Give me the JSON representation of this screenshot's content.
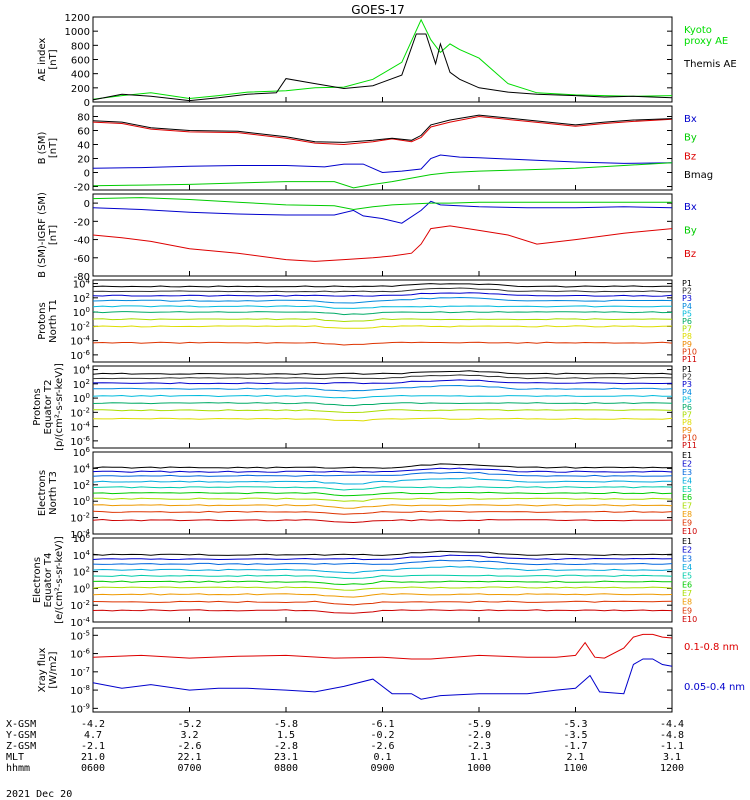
{
  "chart_data": {
    "type": "line",
    "title": "GOES-17",
    "date_label": "2021 Dec 20",
    "x_ticks": [
      "0600",
      "0700",
      "0800",
      "0900",
      "1000",
      "1100",
      "1200"
    ],
    "x_range_hours": [
      6,
      12
    ],
    "ephemeris": {
      "row_labels": [
        "X-GSM",
        "Y-GSM",
        "Z-GSM",
        "MLT",
        "hhmm"
      ],
      "rows": [
        [
          "-4.2",
          "-5.2",
          "-5.8",
          "-6.1",
          "-5.9",
          "-5.3",
          "-4.4"
        ],
        [
          "4.7",
          "3.2",
          "1.5",
          "-0.2",
          "-2.0",
          "-3.5",
          "-4.8"
        ],
        [
          "-2.1",
          "-2.6",
          "-2.8",
          "-2.6",
          "-2.3",
          "-1.7",
          "-1.1"
        ],
        [
          "21.0",
          "22.1",
          "23.1",
          "0.1",
          "1.1",
          "2.1",
          "3.1"
        ],
        [
          "0600",
          "0700",
          "0800",
          "0900",
          "1000",
          "1100",
          "1200"
        ]
      ]
    },
    "panels": [
      {
        "id": "ae",
        "ylabel": [
          "AE index",
          "[nT]"
        ],
        "scale": "linear",
        "ylim": [
          0,
          1200
        ],
        "yticks": [
          "0",
          "200",
          "400",
          "600",
          "800",
          "1000",
          "1200"
        ],
        "legend_style": "stacked",
        "series": [
          {
            "name": "Kyoto proxy AE",
            "label_lines": [
              "Kyoto",
              "proxy AE"
            ],
            "color": "#00dd00",
            "x": [
              6.0,
              6.3,
              6.6,
              7.0,
              7.3,
              7.6,
              8.0,
              8.3,
              8.6,
              8.9,
              9.2,
              9.4,
              9.5,
              9.6,
              9.7,
              9.8,
              10.0,
              10.3,
              10.6,
              11.0,
              11.3,
              11.6,
              12.0
            ],
            "y": [
              40,
              90,
              130,
              50,
              90,
              140,
              160,
              200,
              210,
              320,
              560,
              1160,
              880,
              700,
              820,
              740,
              620,
              260,
              130,
              100,
              90,
              80,
              90
            ]
          },
          {
            "name": "Themis AE",
            "label_lines": [
              "Themis AE"
            ],
            "color": "#000000",
            "x": [
              6.0,
              6.3,
              6.6,
              7.0,
              7.3,
              7.6,
              7.9,
              8.0,
              8.3,
              8.6,
              8.9,
              9.2,
              9.35,
              9.45,
              9.55,
              9.6,
              9.7,
              9.8,
              10.0,
              10.3,
              10.6,
              11.0,
              11.3,
              11.6,
              12.0
            ],
            "y": [
              30,
              110,
              80,
              20,
              60,
              110,
              130,
              330,
              260,
              190,
              230,
              380,
              960,
              960,
              540,
              820,
              420,
              320,
              200,
              140,
              110,
              90,
              70,
              80,
              60
            ]
          }
        ]
      },
      {
        "id": "bsm",
        "ylabel": [
          "B (SM)",
          "[nT]"
        ],
        "scale": "linear",
        "ylim": [
          -25,
          95
        ],
        "tick_values": [
          -20,
          0,
          20,
          40,
          60,
          80
        ],
        "yticks": [
          "-20",
          "0",
          "20",
          "40",
          "60",
          "80"
        ],
        "legend_style": "stacked",
        "series": [
          {
            "name": "Bx",
            "color": "#0000cc",
            "x": [
              6.0,
              6.5,
              7.0,
              7.5,
              8.0,
              8.4,
              8.6,
              8.8,
              9.0,
              9.2,
              9.4,
              9.5,
              9.6,
              9.8,
              10.0,
              10.5,
              11.0,
              11.5,
              12.0
            ],
            "y": [
              6,
              7,
              9,
              10,
              10,
              8,
              12,
              12,
              0,
              2,
              5,
              20,
              25,
              22,
              21,
              18,
              15,
              13,
              14
            ]
          },
          {
            "name": "By",
            "color": "#00cc00",
            "x": [
              6.0,
              6.5,
              7.0,
              7.5,
              8.0,
              8.5,
              8.7,
              8.9,
              9.1,
              9.3,
              9.5,
              9.7,
              10.0,
              10.5,
              11.0,
              11.5,
              12.0
            ],
            "y": [
              -19,
              -18,
              -17,
              -15,
              -13,
              -13,
              -22,
              -17,
              -13,
              -8,
              -3,
              0,
              2,
              4,
              6,
              10,
              14
            ]
          },
          {
            "name": "Bz",
            "color": "#dd0000",
            "x": [
              6.0,
              6.3,
              6.6,
              7.0,
              7.5,
              8.0,
              8.3,
              8.6,
              8.9,
              9.1,
              9.3,
              9.4,
              9.5,
              9.7,
              10.0,
              10.5,
              11.0,
              11.3,
              11.6,
              12.0
            ],
            "y": [
              72,
              70,
              62,
              58,
              57,
              49,
              42,
              40,
              44,
              48,
              44,
              50,
              65,
              72,
              80,
              73,
              66,
              70,
              73,
              76
            ]
          },
          {
            "name": "Bmag",
            "color": "#000000",
            "x": [
              6.0,
              6.3,
              6.6,
              7.0,
              7.5,
              8.0,
              8.3,
              8.6,
              8.9,
              9.1,
              9.3,
              9.4,
              9.5,
              9.7,
              10.0,
              10.5,
              11.0,
              11.3,
              11.6,
              12.0
            ],
            "y": [
              74,
              72,
              64,
              60,
              59,
              51,
              44,
              43,
              46,
              49,
              46,
              53,
              68,
              75,
              82,
              75,
              68,
              72,
              75,
              77
            ]
          }
        ]
      },
      {
        "id": "bminusigrf",
        "ylabel": [
          "B (SM)-IGRF (SM)",
          "[nT]"
        ],
        "scale": "linear",
        "ylim": [
          -80,
          10
        ],
        "tick_values": [
          -80,
          -60,
          -40,
          -20,
          0
        ],
        "yticks": [
          "-80",
          "-60",
          "-40",
          "-20",
          "0"
        ],
        "legend_style": "stacked",
        "series": [
          {
            "name": "Bx",
            "color": "#0000cc",
            "x": [
              6.0,
              6.5,
              7.0,
              7.5,
              8.0,
              8.5,
              8.7,
              8.8,
              9.0,
              9.2,
              9.4,
              9.5,
              9.6,
              10.0,
              10.5,
              11.0,
              11.5,
              12.0
            ],
            "y": [
              -5,
              -7,
              -10,
              -12,
              -13,
              -13,
              -8,
              -14,
              -17,
              -22,
              -8,
              2,
              -2,
              -4,
              -5,
              -5,
              -4,
              -5
            ]
          },
          {
            "name": "By",
            "color": "#00cc00",
            "x": [
              6.0,
              6.5,
              7.0,
              7.5,
              8.0,
              8.5,
              8.7,
              8.9,
              9.1,
              9.3,
              9.5,
              9.7,
              10.0,
              10.5,
              11.0,
              11.5,
              12.0
            ],
            "y": [
              5,
              6,
              4,
              1,
              -2,
              -3,
              -7,
              -4,
              -2,
              -1,
              0,
              0,
              1,
              1,
              1,
              1,
              1
            ]
          },
          {
            "name": "Bz",
            "color": "#dd0000",
            "x": [
              6.0,
              6.3,
              6.6,
              7.0,
              7.5,
              8.0,
              8.3,
              8.6,
              8.9,
              9.1,
              9.3,
              9.4,
              9.5,
              9.7,
              10.0,
              10.3,
              10.6,
              11.0,
              11.5,
              12.0
            ],
            "y": [
              -35,
              -38,
              -42,
              -50,
              -55,
              -62,
              -64,
              -62,
              -60,
              -58,
              -55,
              -45,
              -28,
              -25,
              -30,
              -35,
              -45,
              -40,
              -33,
              -28
            ]
          }
        ]
      },
      {
        "id": "protons_t1",
        "ylabel": [
          "Protons",
          "North T1"
        ],
        "scale": "log",
        "ylim_exp": [
          -7,
          4.5
        ],
        "tick_exps": [
          -6,
          -4,
          -2,
          0,
          2,
          4
        ],
        "yticks": [
          "10^-6",
          "10^-4",
          "10^-2",
          "10^0",
          "10^2",
          "10^4"
        ],
        "legend_style": "small",
        "channels": [
          "P1",
          "P2",
          "P3",
          "P4",
          "P5",
          "P6",
          "P7",
          "P8",
          "P9",
          "P10",
          "P11"
        ],
        "channel_colors": [
          "#000000",
          "#333333",
          "#0000cc",
          "#0088dd",
          "#00bbdd",
          "#00aa66",
          "#aadd00",
          "#dddd00",
          "#ee8800",
          "#dd3300",
          "#cc0000"
        ],
        "channel_levels": [
          3.6,
          2.9,
          2.3,
          1.6,
          0.8,
          0.0,
          -1.0,
          -2.0,
          -3.0,
          -4.3,
          -5.2
        ],
        "channel_shown": [
          true,
          true,
          true,
          true,
          true,
          true,
          true,
          true,
          false,
          true,
          false
        ]
      },
      {
        "id": "protons_t2",
        "ylabel": [
          "Protons",
          "Equator T2",
          "[p/(cm²-s-sr-keV)]"
        ],
        "scale": "log",
        "ylim_exp": [
          -7,
          4.5
        ],
        "tick_exps": [
          -6,
          -4,
          -2,
          0,
          2,
          4
        ],
        "yticks": [
          "10^-6",
          "10^-4",
          "10^-2",
          "10^0",
          "10^2",
          "10^4"
        ],
        "legend_style": "small",
        "channels": [
          "P1",
          "P2",
          "P3",
          "P4",
          "P5",
          "P6",
          "P7",
          "P8",
          "P9",
          "P10",
          "P11"
        ],
        "channel_colors": [
          "#000000",
          "#333333",
          "#0000cc",
          "#0088dd",
          "#00bbdd",
          "#00aa66",
          "#aadd00",
          "#dddd00",
          "#ee8800",
          "#dd3300",
          "#cc0000"
        ],
        "channel_levels": [
          3.4,
          2.8,
          2.1,
          1.3,
          0.3,
          -0.7,
          -1.7,
          -2.9,
          -3.8,
          -5.0,
          -6.0
        ],
        "channel_shown": [
          true,
          true,
          true,
          true,
          true,
          true,
          true,
          true,
          false,
          false,
          false
        ]
      },
      {
        "id": "electrons_t3",
        "ylabel": [
          "Electrons",
          "North T3"
        ],
        "scale": "log",
        "ylim_exp": [
          -4,
          6
        ],
        "tick_exps": [
          -4,
          -2,
          0,
          2,
          4,
          6
        ],
        "yticks": [
          "10^-4",
          "10^-2",
          "10^0",
          "10^2",
          "10^4",
          "10^6"
        ],
        "legend_style": "small",
        "channels": [
          "E1",
          "E2",
          "E3",
          "E4",
          "E5",
          "E6",
          "E7",
          "E8",
          "E9",
          "E10"
        ],
        "channel_colors": [
          "#000000",
          "#0000cc",
          "#0066dd",
          "#00aadd",
          "#00ccaa",
          "#00cc00",
          "#aadd00",
          "#ee9900",
          "#dd3300",
          "#cc0000"
        ],
        "channel_levels": [
          4.1,
          3.6,
          3.1,
          2.4,
          1.7,
          1.0,
          0.3,
          -0.5,
          -1.3,
          -2.3
        ],
        "channel_shown": [
          true,
          true,
          true,
          true,
          true,
          true,
          true,
          true,
          true,
          true
        ]
      },
      {
        "id": "electrons_t4",
        "ylabel": [
          "Electrons",
          "Equator T4",
          "[e/(cm²-s-sr-keV)]"
        ],
        "scale": "log",
        "ylim_exp": [
          -4,
          6
        ],
        "tick_exps": [
          -4,
          -2,
          0,
          2,
          4,
          6
        ],
        "yticks": [
          "10^-4",
          "10^-2",
          "10^0",
          "10^2",
          "10^4",
          "10^6"
        ],
        "legend_style": "small",
        "channels": [
          "E1",
          "E2",
          "E3",
          "E4",
          "E5",
          "E6",
          "E7",
          "E8",
          "E9",
          "E10"
        ],
        "channel_colors": [
          "#000000",
          "#0000cc",
          "#0066dd",
          "#00aadd",
          "#00ccaa",
          "#00cc00",
          "#aadd00",
          "#ee9900",
          "#dd3300",
          "#cc0000"
        ],
        "channel_levels": [
          4.0,
          3.5,
          2.9,
          2.2,
          1.5,
          0.8,
          0.1,
          -0.7,
          -1.6,
          -2.6
        ],
        "channel_shown": [
          true,
          true,
          true,
          true,
          true,
          true,
          true,
          true,
          true,
          true
        ]
      },
      {
        "id": "xray",
        "ylabel": [
          "Xray flux",
          "[W/m2]"
        ],
        "scale": "log",
        "ylim_exp": [
          -9.2,
          -4.6
        ],
        "tick_exps": [
          -9,
          -8,
          -7,
          -6,
          -5
        ],
        "yticks": [
          "10^-9",
          "10^-8",
          "10^-7",
          "10^-6",
          "10^-5"
        ],
        "legend_style": "right",
        "series": [
          {
            "name": "0.1-0.8 nm",
            "color": "#dd0000",
            "x": [
              6.0,
              6.5,
              7.0,
              7.5,
              8.0,
              8.5,
              9.0,
              9.3,
              9.5,
              10.0,
              10.5,
              10.8,
              11.0,
              11.1,
              11.2,
              11.3,
              11.5,
              11.6,
              11.7,
              11.8,
              11.9,
              12.0
            ],
            "y": [
              -6.2,
              -6.1,
              -6.25,
              -6.15,
              -6.1,
              -6.25,
              -6.2,
              -6.3,
              -6.3,
              -6.1,
              -6.2,
              -6.2,
              -6.1,
              -5.4,
              -6.2,
              -6.25,
              -5.7,
              -5.1,
              -4.95,
              -4.95,
              -5.1,
              -5.15
            ]
          },
          {
            "name": "0.05-0.4 nm",
            "color": "#0000cc",
            "x": [
              6.0,
              6.3,
              6.6,
              7.0,
              7.3,
              7.6,
              8.0,
              8.3,
              8.6,
              8.9,
              9.1,
              9.3,
              9.4,
              9.6,
              10.0,
              10.5,
              10.8,
              11.0,
              11.15,
              11.25,
              11.5,
              11.6,
              11.7,
              11.8,
              11.9,
              12.0
            ],
            "y": [
              -7.6,
              -7.9,
              -7.7,
              -8.0,
              -7.9,
              -7.9,
              -8.0,
              -8.1,
              -7.8,
              -7.4,
              -8.2,
              -8.2,
              -8.5,
              -8.3,
              -8.2,
              -8.2,
              -8.0,
              -7.9,
              -7.2,
              -8.1,
              -8.2,
              -6.6,
              -6.3,
              -6.3,
              -6.6,
              -6.7
            ]
          }
        ]
      }
    ]
  }
}
